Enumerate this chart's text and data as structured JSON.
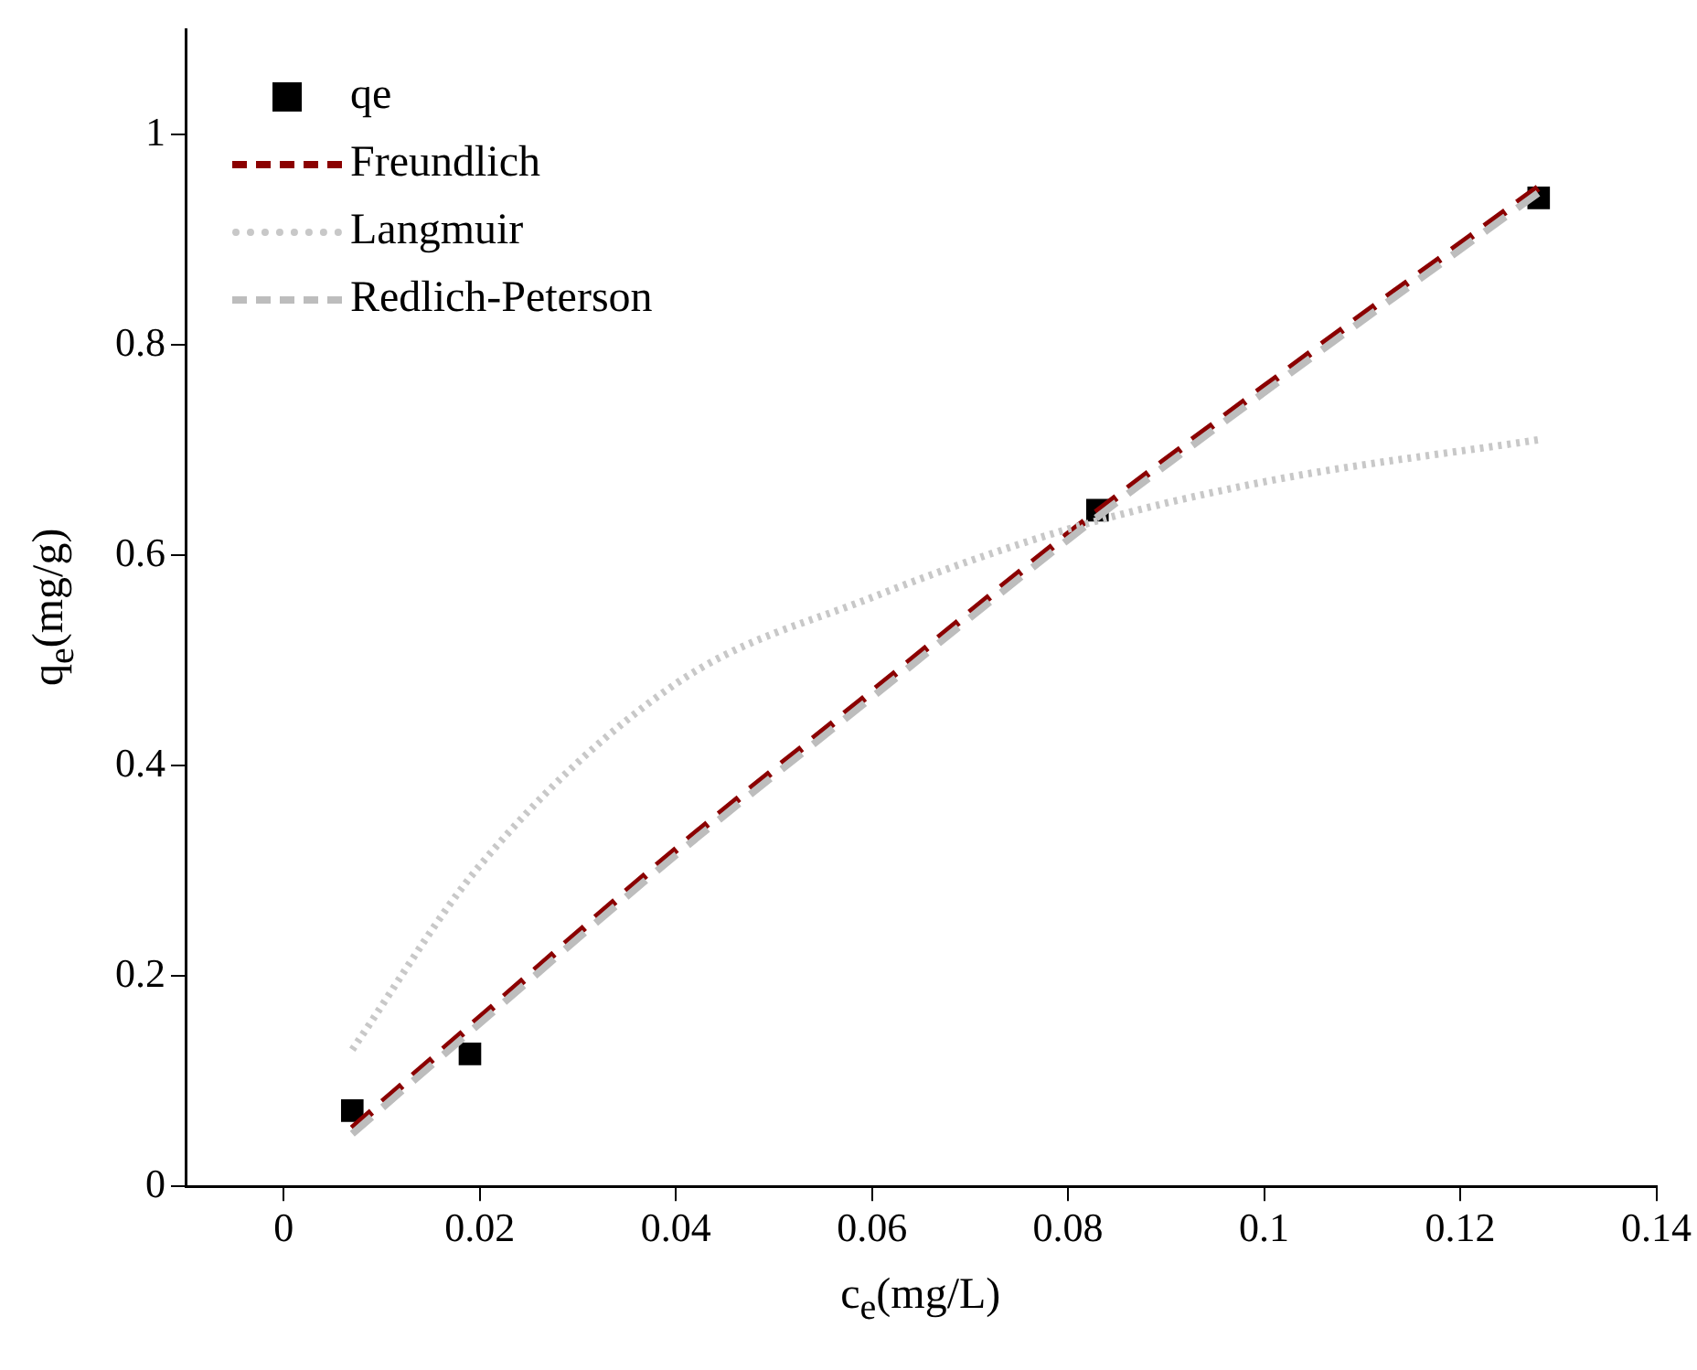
{
  "chart_data": {
    "type": "scatter",
    "xlabel": "c$_{e}$(mg/L)",
    "ylabel": "q$_{e}$(mg/g)",
    "xlim": [
      -0.01,
      0.14
    ],
    "xticks": [
      0,
      0.02,
      0.04,
      0.06,
      0.08,
      0.1,
      0.12,
      0.14
    ],
    "ylim": [
      0,
      1.1
    ],
    "yticks": [
      0,
      0.2,
      0.4,
      0.6,
      0.8,
      1
    ],
    "grid": false,
    "legend": "top left",
    "series": [
      {
        "name": "qe",
        "marker": "square",
        "color": "#000000",
        "x": [
          0.007,
          0.019,
          0.083,
          0.128
        ],
        "values": [
          0.072,
          0.126,
          0.643,
          0.94
        ]
      },
      {
        "name": "Freundlich",
        "type": "line",
        "marker": "none",
        "line_style": "dashed",
        "color": "#8b0000",
        "x": [
          0.007,
          0.02,
          0.04,
          0.06,
          0.08,
          0.1,
          0.128
        ],
        "values": [
          0.055,
          0.16,
          0.32,
          0.47,
          0.62,
          0.76,
          0.95
        ]
      },
      {
        "name": "Langmuir",
        "type": "line",
        "marker": "none",
        "line_style": "dotted",
        "color": "#c8c8c8",
        "x": [
          0.007,
          0.02,
          0.04,
          0.06,
          0.08,
          0.1,
          0.128
        ],
        "values": [
          0.13,
          0.305,
          0.478,
          0.56,
          0.625,
          0.67,
          0.71
        ]
      },
      {
        "name": "Redlich-Peterson",
        "type": "line",
        "marker": "none",
        "line_style": "dashed",
        "color": "#bdbdbd",
        "x": [
          0.007,
          0.02,
          0.04,
          0.06,
          0.08,
          0.1,
          0.128
        ],
        "values": [
          0.05,
          0.155,
          0.315,
          0.465,
          0.615,
          0.755,
          0.945
        ]
      }
    ]
  }
}
